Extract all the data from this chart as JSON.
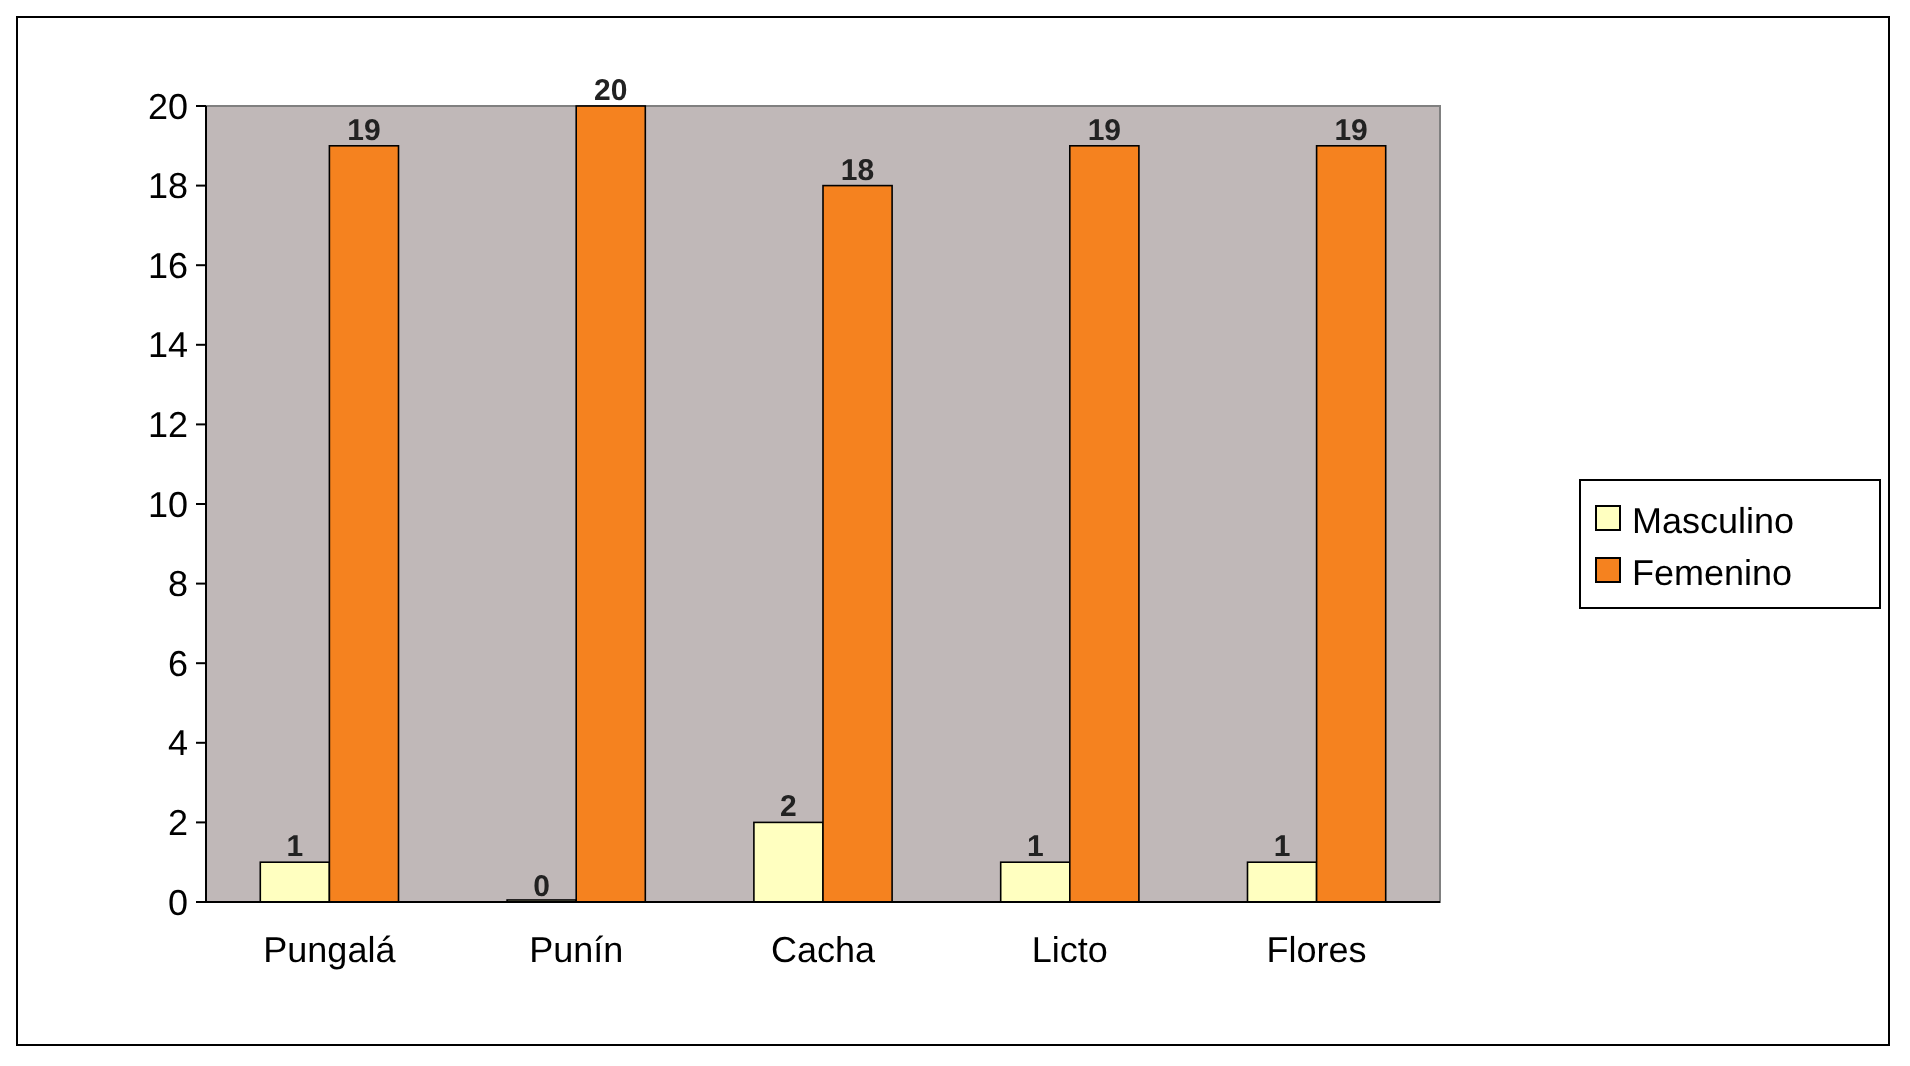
{
  "chart_data": {
    "type": "bar",
    "categories": [
      "Pungalá",
      "Punín",
      "Cacha",
      "Licto",
      "Flores"
    ],
    "series": [
      {
        "name": "Masculino",
        "color": "#ffffc0",
        "values": [
          1,
          0,
          2,
          1,
          1
        ]
      },
      {
        "name": "Femenino",
        "color": "#f5821f",
        "values": [
          19,
          20,
          18,
          19,
          19
        ]
      }
    ],
    "ylim": [
      0,
      20
    ],
    "yticks": [
      0,
      2,
      4,
      6,
      8,
      10,
      12,
      14,
      16,
      18,
      20
    ],
    "data_labels": true,
    "legend": "right",
    "grid": false
  }
}
